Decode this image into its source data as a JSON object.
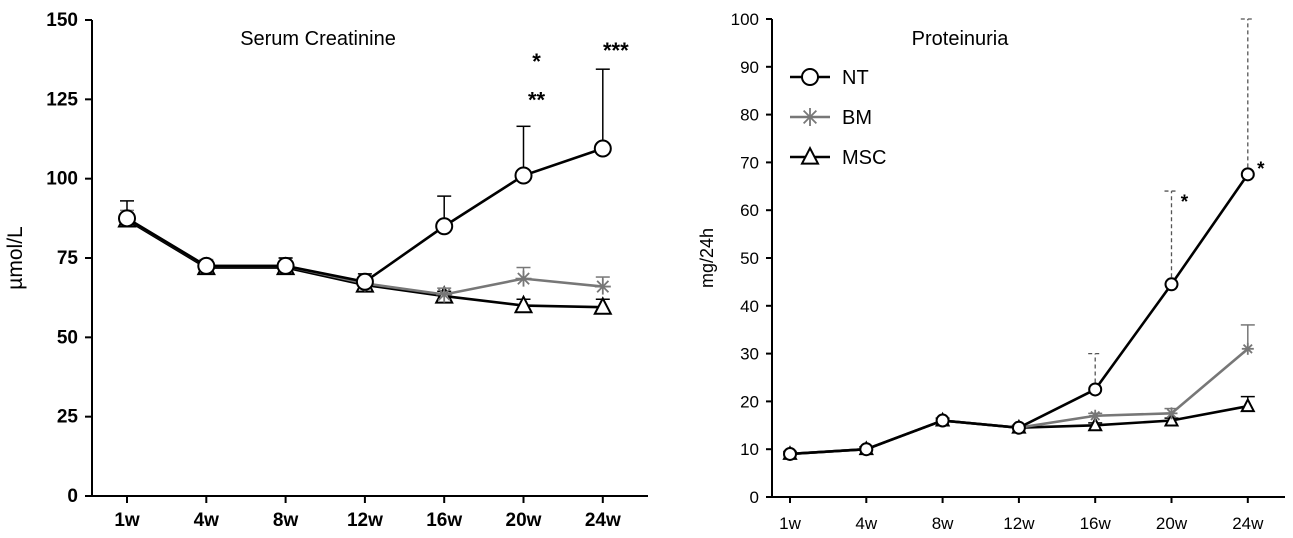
{
  "chart_data": [
    {
      "type": "line",
      "title": "Serum Creatinine",
      "ylabel": "µmol/L",
      "xlabel": "",
      "categories": [
        "1w",
        "4w",
        "8w",
        "12w",
        "16w",
        "20w",
        "24w"
      ],
      "ylim": [
        0,
        150
      ],
      "yticks": [
        0,
        25,
        50,
        75,
        100,
        125,
        150
      ],
      "grid": false,
      "legend": false,
      "series": [
        {
          "key": "NT",
          "color": "#000000",
          "marker": "circle",
          "values": [
            87.5,
            72.5,
            72.5,
            67.5,
            85,
            101,
            109.5
          ],
          "err_upper": [
            93,
            74,
            75,
            70,
            94.5,
            116.5,
            134.5
          ],
          "err_style": "solid"
        },
        {
          "key": "BM",
          "color": "#777777",
          "marker": "asterisk",
          "values": [
            87.5,
            72.5,
            72.5,
            67,
            63.5,
            68.5,
            66
          ],
          "err_upper": [
            90,
            74.5,
            75,
            69,
            65.5,
            72,
            69
          ],
          "err_style": "solid"
        },
        {
          "key": "MSC",
          "color": "#000000",
          "marker": "triangle",
          "values": [
            87,
            72,
            72,
            66.5,
            63,
            60,
            59.5
          ],
          "err_upper": [
            89,
            73.5,
            73.5,
            68.5,
            64.5,
            62,
            62
          ],
          "err_style": "solid"
        }
      ],
      "annotations": [
        {
          "text": "*",
          "category": "20w",
          "y": 139,
          "size": 22
        },
        {
          "text": "**",
          "category": "20w",
          "y": 127,
          "size": 22
        },
        {
          "text": "***",
          "category": "24w",
          "y": 142.5,
          "size": 22
        }
      ]
    },
    {
      "type": "line",
      "title": "Proteinuria",
      "ylabel": "mg/24h",
      "xlabel": "",
      "categories": [
        "1w",
        "4w",
        "8w",
        "12w",
        "16w",
        "20w",
        "24w"
      ],
      "ylim": [
        0,
        100
      ],
      "yticks": [
        0,
        10,
        20,
        30,
        40,
        50,
        60,
        70,
        80,
        90,
        100
      ],
      "grid": false,
      "legend": true,
      "legend_position": "top-left",
      "series": [
        {
          "name": "NT",
          "color": "#000000",
          "marker": "circle",
          "values": [
            9,
            10,
            16,
            14.5,
            22.5,
            44.5,
            67.5
          ],
          "err_upper": [
            9.5,
            10.5,
            16.5,
            15,
            30,
            64,
            100
          ],
          "err_style": "dashed"
        },
        {
          "name": "BM",
          "color": "#777777",
          "marker": "asterisk",
          "values": [
            9,
            10,
            16,
            14.5,
            17,
            17.5,
            31
          ],
          "err_upper": [
            9.5,
            10.5,
            16.5,
            15,
            17.5,
            18.5,
            36
          ],
          "err_style": "solid"
        },
        {
          "name": "MSC",
          "color": "#000000",
          "marker": "triangle",
          "values": [
            9,
            10,
            16,
            14.5,
            15,
            16,
            19
          ],
          "err_upper": [
            9.5,
            10.5,
            16.5,
            15,
            15.5,
            16.5,
            21
          ],
          "err_style": "solid"
        }
      ],
      "annotations": [
        {
          "text": "*",
          "category": "20w",
          "y": 63,
          "size": 19
        },
        {
          "text": "*",
          "category": "24w",
          "y": 70,
          "size": 19
        }
      ]
    }
  ]
}
